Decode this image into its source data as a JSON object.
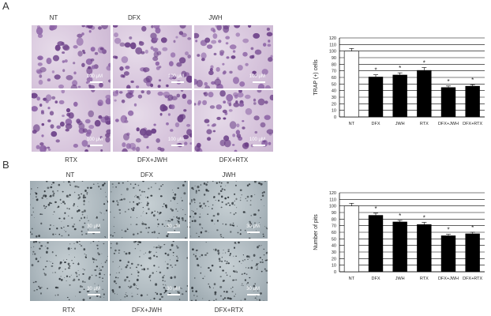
{
  "panel_a": {
    "letter": "A",
    "micrographs": [
      {
        "label": "NT",
        "scale": "100 μM"
      },
      {
        "label": "DFX",
        "scale": "100 μM"
      },
      {
        "label": "JWH",
        "scale": "100 μM"
      },
      {
        "label": "RTX",
        "scale": "100 μM"
      },
      {
        "label": "DFX+JWH",
        "scale": "100 μM"
      },
      {
        "label": "DFX+RTX",
        "scale": "100 μM"
      }
    ]
  },
  "panel_b": {
    "letter": "B",
    "micrographs": [
      {
        "label": "NT",
        "scale": "30 μM"
      },
      {
        "label": "DFX",
        "scale": "30 μM"
      },
      {
        "label": "JWH",
        "scale": "30 μM"
      },
      {
        "label": "RTX",
        "scale": "30 μM"
      },
      {
        "label": "DFX+JWH",
        "scale": "30 μM"
      },
      {
        "label": "DFX+RTX",
        "scale": "30 μM"
      }
    ]
  },
  "chart_data": [
    {
      "type": "bar",
      "ylabel": "TRAP (+) cells",
      "xlabel": "",
      "ylim": [
        0,
        120
      ],
      "yticks": [
        0,
        10,
        20,
        30,
        40,
        50,
        60,
        70,
        80,
        90,
        100,
        110,
        120
      ],
      "categories": [
        "NT",
        "DFX",
        "JWH",
        "RTX",
        "DFX+JWH",
        "DFX+RTX"
      ],
      "values": [
        100,
        61,
        64,
        71,
        45,
        47
      ],
      "errors": [
        4,
        3,
        3,
        4,
        2,
        2
      ],
      "significance": [
        "",
        "*",
        "*",
        "*",
        "*",
        "*"
      ],
      "bar_color": "#000000",
      "grid": true
    },
    {
      "type": "bar",
      "ylabel": "Number of pits",
      "xlabel": "",
      "ylim": [
        0,
        120
      ],
      "yticks": [
        0,
        10,
        20,
        30,
        40,
        50,
        60,
        70,
        80,
        90,
        100,
        110,
        120
      ],
      "categories": [
        "NT",
        "DFX",
        "JWH",
        "RTX",
        "DFX+JWH",
        "DFX+RTX"
      ],
      "values": [
        100,
        86,
        76,
        72,
        55,
        58
      ],
      "errors": [
        4,
        3,
        2,
        3,
        2,
        2
      ],
      "significance": [
        "",
        "*",
        "*",
        "*",
        "*",
        "*"
      ],
      "bar_color": "#000000",
      "grid": true
    }
  ]
}
